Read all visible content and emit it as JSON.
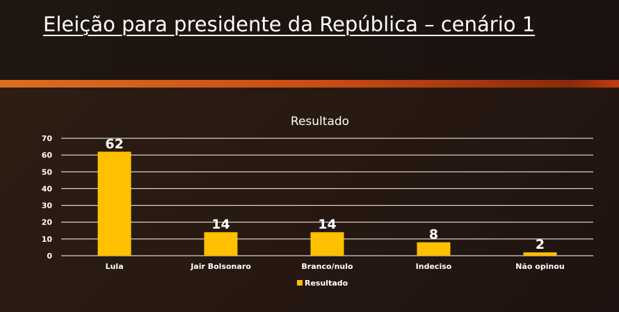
{
  "slide": {
    "title": "Eleição para presidente da República – cenário 1"
  },
  "chart_data": {
    "type": "bar",
    "title": "Resultado",
    "categories": [
      "Lula",
      "Jair Bolsonaro",
      "Branco/nulo",
      "Indeciso",
      "Não opinou"
    ],
    "series": [
      {
        "name": "Resultado",
        "values": [
          62,
          14,
          14,
          8,
          2
        ],
        "color": "#ffc000"
      }
    ],
    "ylim": [
      0,
      70
    ],
    "yticks": [
      0,
      10,
      20,
      30,
      40,
      50,
      60,
      70
    ],
    "grid": true,
    "data_labels": true,
    "legend": "bottom",
    "xlabel": "",
    "ylabel": ""
  }
}
